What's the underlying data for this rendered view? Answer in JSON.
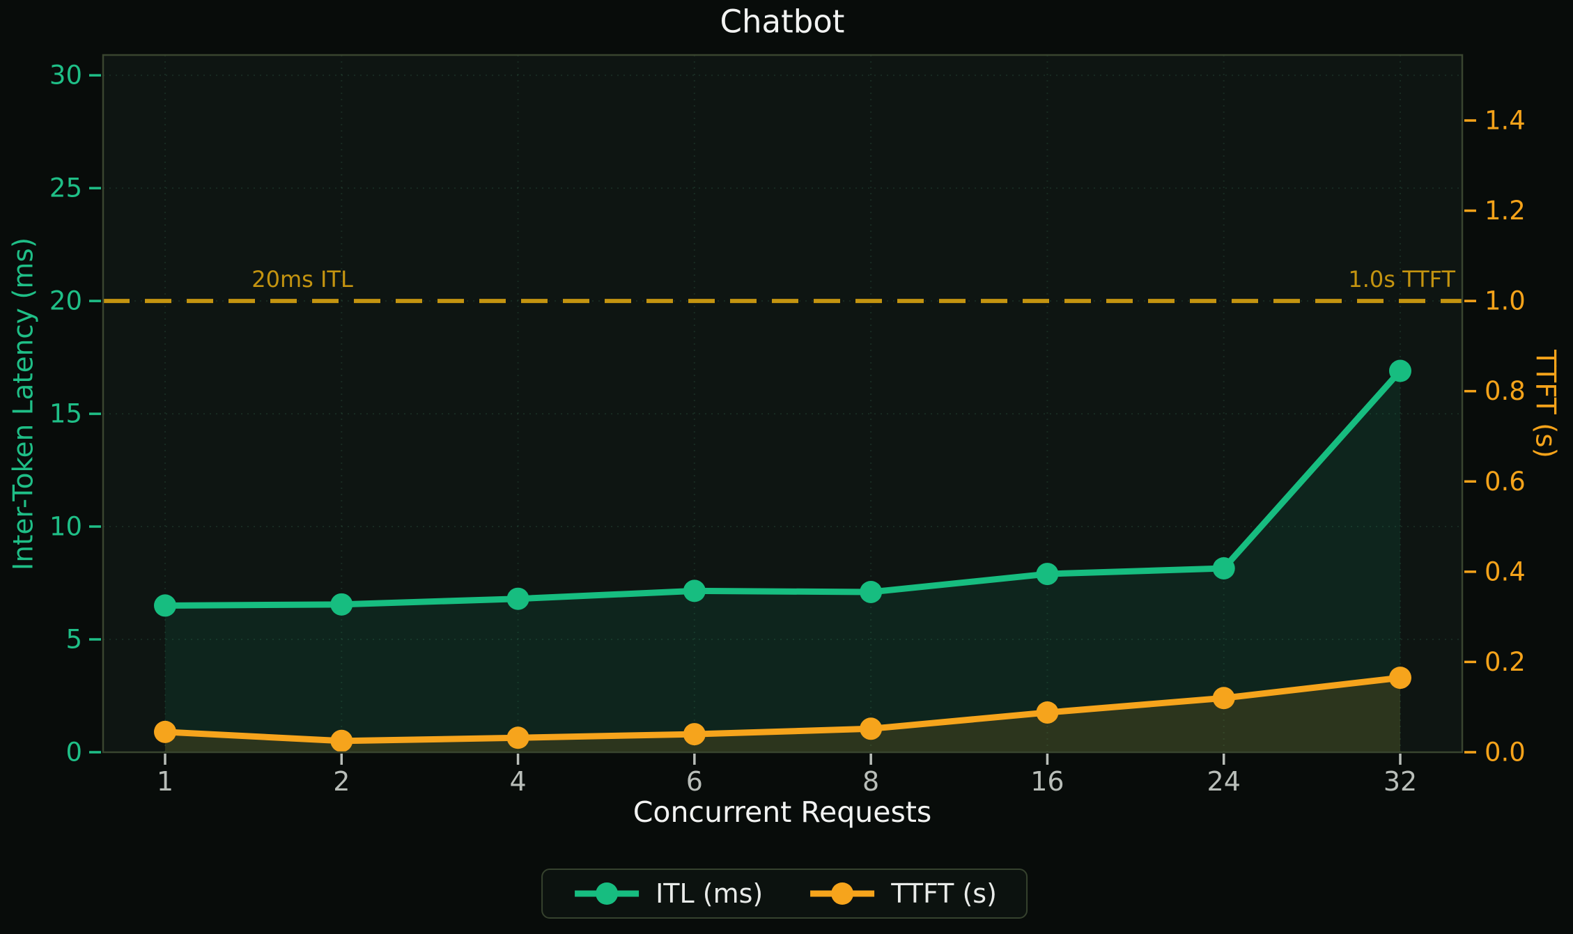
{
  "chart_data": {
    "type": "line",
    "title": "Chatbot",
    "xlabel": "Concurrent Requests",
    "x_categories": [
      "1",
      "2",
      "4",
      "6",
      "8",
      "16",
      "24",
      "32"
    ],
    "left_axis": {
      "label": "Inter-Token Latency (ms)",
      "tick_values": [
        0,
        5,
        10,
        15,
        20,
        25,
        30
      ],
      "tick_labels": [
        "0",
        "5",
        "10",
        "15",
        "20",
        "25",
        "30"
      ],
      "ylim": [
        0,
        30.9
      ],
      "color": "#1fbf87"
    },
    "right_axis": {
      "label": "TTFT (s)",
      "tick_values": [
        0.0,
        0.2,
        0.4,
        0.6,
        0.8,
        1.0,
        1.2,
        1.4
      ],
      "tick_labels": [
        "0.0",
        "0.2",
        "0.4",
        "0.6",
        "0.8",
        "1.0",
        "1.2",
        "1.4"
      ],
      "ylim": [
        0,
        1.545
      ],
      "color": "#f5a31a"
    },
    "series": [
      {
        "name": "ITL (ms)",
        "axis": "left",
        "color": "#17bd80",
        "fill_opacity": 0.1,
        "values": [
          6.5,
          6.55,
          6.8,
          7.15,
          7.1,
          7.9,
          8.15,
          16.9
        ]
      },
      {
        "name": "TTFT (s)",
        "axis": "right",
        "color": "#f6a41c",
        "fill_opacity": 0.13,
        "values": [
          0.045,
          0.025,
          0.032,
          0.04,
          0.052,
          0.088,
          0.12,
          0.165
        ]
      }
    ],
    "threshold": {
      "left_value": 20,
      "right_value": 1.0,
      "color": "#c49410",
      "label_left": "20ms ITL",
      "label_right": "1.0s TTFT"
    },
    "legend": [
      {
        "label": "ITL (ms)",
        "color": "#17bd80"
      },
      {
        "label": "TTFT (s)",
        "color": "#f6a41c"
      }
    ],
    "style": {
      "figure_bg": "#080c0a",
      "plot_bg": "#0e1512",
      "grid_color": "#3f7a5c",
      "spine_color": "#39452f",
      "x_tick_color": "#b9beb9",
      "title_color": "#f2f3f2"
    }
  }
}
